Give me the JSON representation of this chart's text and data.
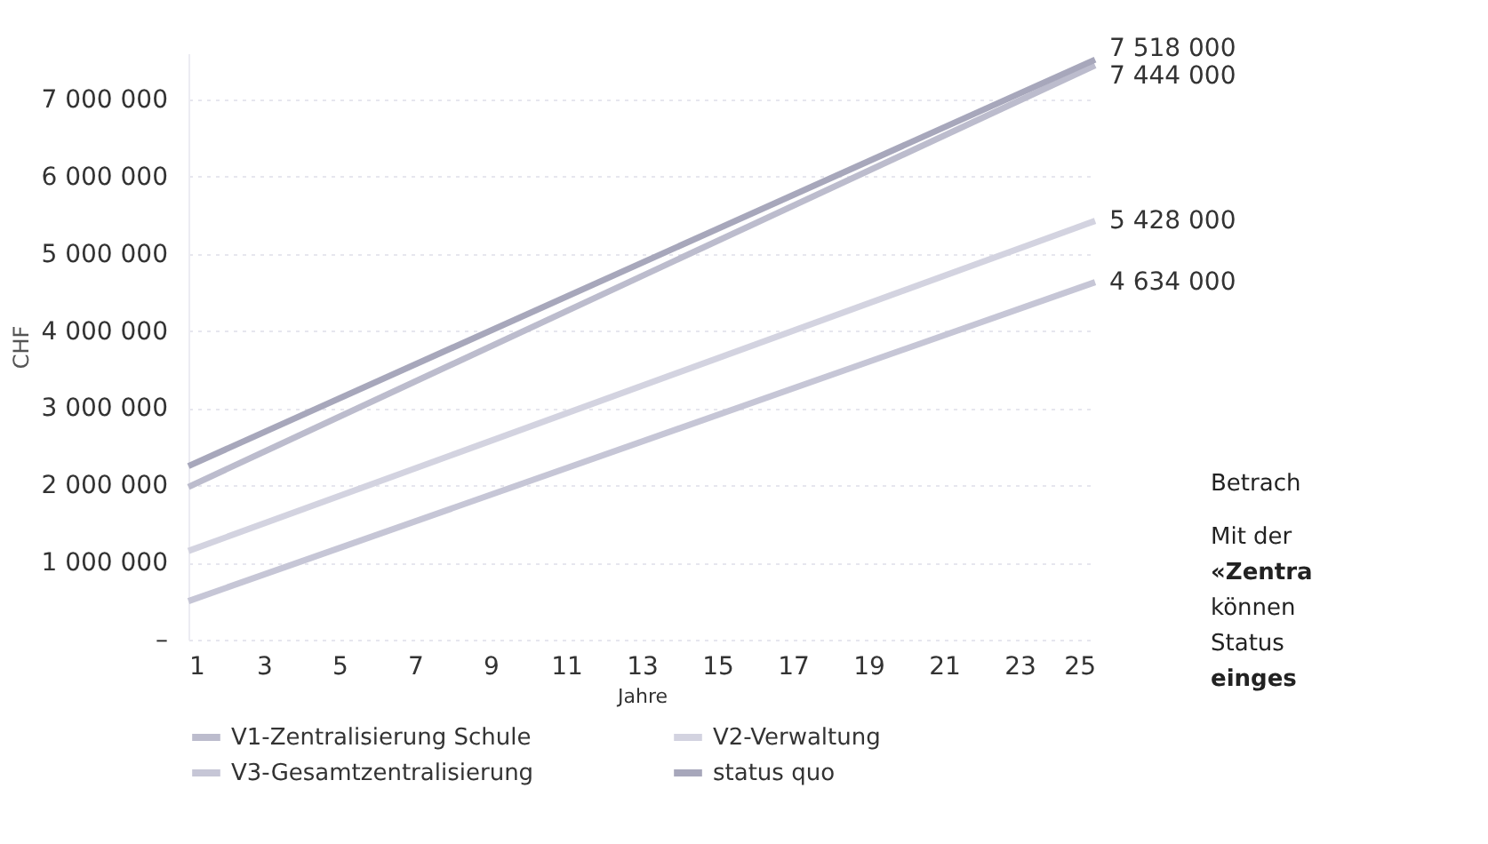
{
  "chart_data": {
    "type": "line",
    "xlabel": "Jahre",
    "ylabel": "CHF",
    "x": [
      1,
      25
    ],
    "series": [
      {
        "name": "V1-Zentralisierung Schule",
        "color": "#bcbccd",
        "values": [
          1980000,
          7444000
        ],
        "value_labels": [
          null,
          "7 444 000"
        ]
      },
      {
        "name": "V2-Verwaltung",
        "color": "#d3d3e0",
        "values": [
          1150000,
          5428000
        ],
        "value_labels": [
          null,
          "5 428 000"
        ]
      },
      {
        "name": "V3-Gesamtzentralisierung",
        "color": "#c6c6d6",
        "values": [
          500000,
          4634000
        ],
        "value_labels": [
          null,
          "4 634 000"
        ]
      },
      {
        "name": "status quo",
        "color": "#a7a7bb",
        "values": [
          2250000,
          7518000
        ],
        "value_labels": [
          null,
          "7 518 000"
        ]
      }
    ],
    "xlim": [
      1,
      25
    ],
    "xticks": [
      1,
      3,
      5,
      7,
      9,
      11,
      13,
      15,
      17,
      19,
      21,
      23,
      25
    ],
    "ylim": [
      0,
      7600000
    ],
    "yticks": [
      {
        "value": 0,
        "label": "–"
      },
      {
        "value": 1000000,
        "label": "1 000 000"
      },
      {
        "value": 2000000,
        "label": "2 000 000"
      },
      {
        "value": 3000000,
        "label": "3 000 000"
      },
      {
        "value": 4000000,
        "label": "4 000 000"
      },
      {
        "value": 5000000,
        "label": "5 000 000"
      },
      {
        "value": 6000000,
        "label": "6 000 000"
      },
      {
        "value": 7000000,
        "label": "7 000 000"
      }
    ],
    "grid": "y",
    "legend": "bottom",
    "marker": "none",
    "line_style": "solid",
    "annotations": [
      "Betrach",
      "Mit der",
      "«Zentra",
      "können",
      "Status",
      "einges"
    ]
  }
}
